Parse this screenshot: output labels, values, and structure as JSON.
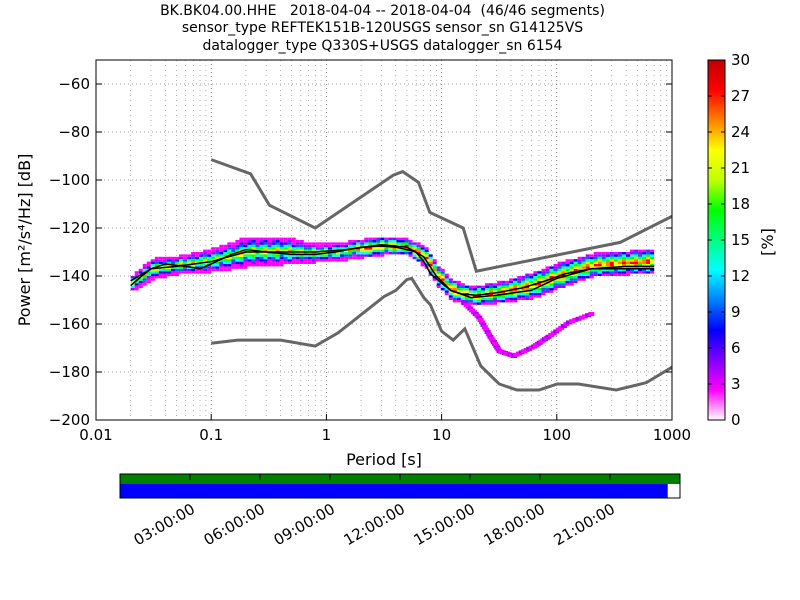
{
  "title_lines": [
    "BK.BK04.00.HHE   2018-04-04 -- 2018-04-04  (46/46 segments)",
    "sensor_type REFTEK151B-120USGS sensor_sn G14125VS",
    "datalogger_type Q330S+USGS datalogger_sn 6154"
  ],
  "chart_data": {
    "type": "heatmap",
    "xlabel": "Period [s]",
    "ylabel": "Power [m²/s⁴/Hz] [dB]",
    "xscale": "log",
    "xlim": [
      0.01,
      1000
    ],
    "ylim": [
      -200,
      -50
    ],
    "x_ticks": [
      0.01,
      0.1,
      1,
      10,
      100,
      1000
    ],
    "x_tick_labels": [
      "0.01",
      "0.1",
      "1",
      "10",
      "100",
      "1000"
    ],
    "y_ticks": [
      -200,
      -180,
      -160,
      -140,
      -120,
      -100,
      -80,
      -60
    ],
    "colorbar": {
      "label": "[%]",
      "range": [
        0,
        30
      ],
      "ticks": [
        0,
        3,
        6,
        9,
        12,
        15,
        18,
        21,
        24,
        27,
        30
      ],
      "colors": [
        "#ffffff",
        "#ff00ff",
        "#8000ff",
        "#0000ff",
        "#0080ff",
        "#00ffff",
        "#00ff80",
        "#00ff00",
        "#c0ff00",
        "#ffff00",
        "#ff8000",
        "#ff0000",
        "#c00000"
      ]
    },
    "noise_model_high": [
      [
        0.1,
        -91.5
      ],
      [
        0.22,
        -97.4
      ],
      [
        0.32,
        -110.5
      ],
      [
        0.8,
        -120
      ],
      [
        3.8,
        -98
      ],
      [
        4.6,
        -96.5
      ],
      [
        6.3,
        -101
      ],
      [
        7.9,
        -113.5
      ],
      [
        15.4,
        -120
      ],
      [
        20,
        -138
      ],
      [
        354.8,
        -126
      ],
      [
        10000,
        -91
      ]
    ],
    "noise_model_low": [
      [
        0.1,
        -168
      ],
      [
        0.17,
        -166.7
      ],
      [
        0.4,
        -166.7
      ],
      [
        0.8,
        -169.2
      ],
      [
        1.26,
        -163.7
      ],
      [
        3.16,
        -148.6
      ],
      [
        4.0,
        -146
      ],
      [
        5.0,
        -141.5
      ],
      [
        5.5,
        -141
      ],
      [
        7.0,
        -149
      ],
      [
        8.0,
        -152
      ],
      [
        10.0,
        -163
      ],
      [
        12.6,
        -166.7
      ],
      [
        15.9,
        -162
      ],
      [
        21.9,
        -177.5
      ],
      [
        31.6,
        -185
      ],
      [
        45,
        -187.5
      ],
      [
        70,
        -187.5
      ],
      [
        101,
        -185
      ],
      [
        154,
        -185
      ],
      [
        328,
        -187.5
      ],
      [
        600,
        -184.4
      ],
      [
        1000,
        -178
      ]
    ],
    "mean_psd": [
      [
        0.02,
        -144
      ],
      [
        0.025,
        -140
      ],
      [
        0.03,
        -137
      ],
      [
        0.04,
        -135
      ],
      [
        0.06,
        -136
      ],
      [
        0.08,
        -137
      ],
      [
        0.1,
        -135
      ],
      [
        0.15,
        -131
      ],
      [
        0.2,
        -129
      ],
      [
        0.3,
        -130
      ],
      [
        0.5,
        -131
      ],
      [
        0.8,
        -131
      ],
      [
        1.2,
        -130
      ],
      [
        2,
        -128
      ],
      [
        3,
        -127.5
      ],
      [
        4,
        -128
      ],
      [
        5,
        -129
      ],
      [
        6,
        -130
      ],
      [
        7,
        -134
      ],
      [
        8,
        -139
      ],
      [
        10,
        -143
      ],
      [
        12,
        -146
      ],
      [
        15,
        -147.5
      ],
      [
        20,
        -148
      ],
      [
        30,
        -147
      ],
      [
        50,
        -145
      ],
      [
        80,
        -142
      ],
      [
        120,
        -139
      ],
      [
        200,
        -137
      ],
      [
        300,
        -137
      ],
      [
        500,
        -137
      ],
      [
        700,
        -137
      ]
    ],
    "mode_psd": [
      [
        0.02,
        -142
      ],
      [
        0.03,
        -137
      ],
      [
        0.05,
        -136
      ],
      [
        0.1,
        -134
      ],
      [
        0.2,
        -130
      ],
      [
        0.4,
        -130
      ],
      [
        0.8,
        -130
      ],
      [
        1.5,
        -129
      ],
      [
        3,
        -127
      ],
      [
        5,
        -128
      ],
      [
        7,
        -132
      ],
      [
        9,
        -140
      ],
      [
        12,
        -146
      ],
      [
        18,
        -149
      ],
      [
        30,
        -148
      ],
      [
        60,
        -146
      ],
      [
        100,
        -141
      ],
      [
        200,
        -137
      ],
      [
        400,
        -136
      ],
      [
        700,
        -136
      ]
    ],
    "psd_bands": [
      {
        "x": [
          0.02,
          0.03,
          0.05,
          0.1,
          0.2,
          0.4,
          0.8,
          1.5,
          3,
          5,
          7,
          9,
          12,
          18,
          30,
          60,
          100,
          200,
          400,
          700
        ],
        "lower": [
          -146,
          -141,
          -139,
          -138,
          -136,
          -135,
          -134,
          -133,
          -131,
          -131,
          -136,
          -144,
          -150,
          -152,
          -151,
          -149,
          -145,
          -140,
          -139,
          -139
        ],
        "upper": [
          -140,
          -133,
          -132,
          -129,
          -124,
          -124,
          -127,
          -126,
          -124,
          -125,
          -128,
          -136,
          -142,
          -145,
          -143,
          -139,
          -135,
          -131,
          -130,
          -129
        ]
      }
    ],
    "outlier_band": {
      "x": [
        15,
        20,
        25,
        30,
        40,
        60,
        80,
        120,
        200
      ],
      "y": [
        -152,
        -158,
        -166,
        -172,
        -174,
        -170,
        -166,
        -160,
        -156
      ]
    }
  },
  "segment_bar": {
    "hour_labels": [
      "03:00:00",
      "06:00:00",
      "09:00:00",
      "12:00:00",
      "15:00:00",
      "18:00:00",
      "21:00:00"
    ],
    "data_fraction": 0.978,
    "colors": {
      "top": "#008000",
      "bottom": "#0000ff"
    }
  }
}
